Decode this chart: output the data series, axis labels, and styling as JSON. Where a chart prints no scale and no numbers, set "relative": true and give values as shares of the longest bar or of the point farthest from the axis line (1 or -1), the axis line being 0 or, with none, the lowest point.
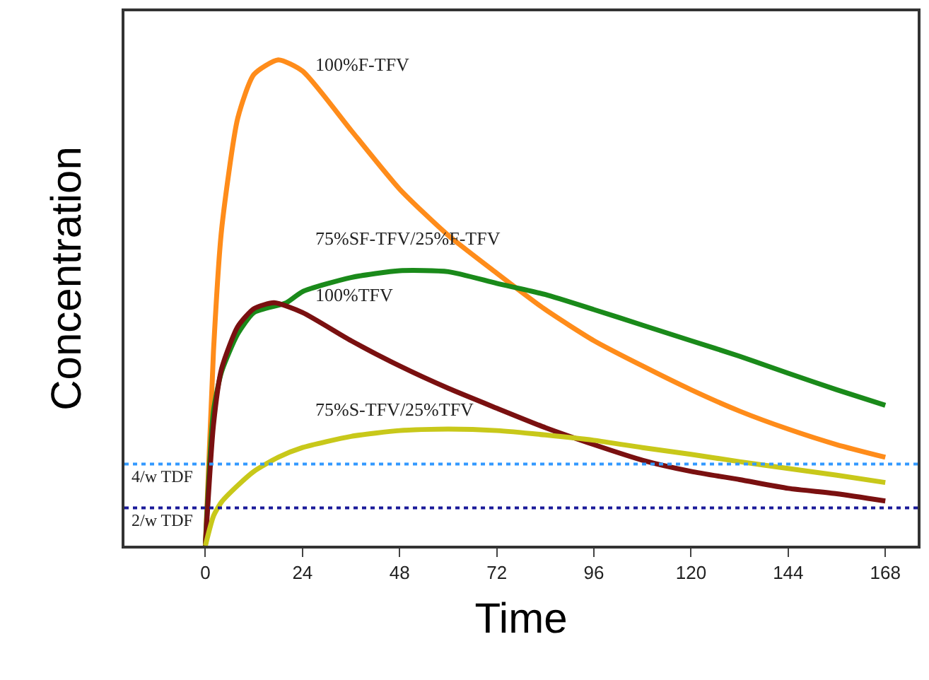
{
  "chart_data": {
    "type": "line",
    "relative": true,
    "xlabel": "Time",
    "ylabel": "Concentration",
    "xlim": [
      -20,
      176
    ],
    "xticks": [
      0,
      24,
      48,
      72,
      96,
      120,
      144,
      168
    ],
    "line_style": "solid",
    "marker": "none",
    "series": [
      {
        "color": "#ff8c1a",
        "x": [
          0,
          2,
          4,
          8,
          12,
          18,
          24,
          36,
          48,
          60,
          72,
          84,
          96,
          108,
          120,
          132,
          144,
          156,
          168
        ],
        "values": [
          0,
          0.4,
          0.65,
          0.88,
          0.97,
          1.0,
          0.977,
          0.855,
          0.734,
          0.639,
          0.561,
          0.486,
          0.422,
          0.37,
          0.321,
          0.277,
          0.24,
          0.208,
          0.182
        ]
      },
      {
        "color": "#1a8a1a",
        "x": [
          0,
          2,
          4,
          8,
          12,
          20,
          24,
          36,
          48,
          60,
          72,
          84,
          96,
          108,
          120,
          132,
          144,
          156,
          168
        ],
        "values": [
          0,
          0.277,
          0.358,
          0.436,
          0.48,
          0.5,
          0.523,
          0.552,
          0.566,
          0.564,
          0.54,
          0.517,
          0.486,
          0.454,
          0.422,
          0.39,
          0.355,
          0.321,
          0.289
        ]
      },
      {
        "color": "#7a1010",
        "x": [
          0,
          2,
          4,
          8,
          12,
          17,
          24,
          36,
          48,
          60,
          72,
          84,
          96,
          108,
          120,
          132,
          144,
          156,
          168
        ],
        "values": [
          0,
          0.249,
          0.364,
          0.451,
          0.488,
          0.5,
          0.48,
          0.422,
          0.37,
          0.324,
          0.283,
          0.243,
          0.208,
          0.176,
          0.153,
          0.136,
          0.118,
          0.107,
          0.092
        ]
      },
      {
        "color": "#c8c81a",
        "x": [
          0,
          2,
          4,
          8,
          12,
          18,
          24,
          36,
          48,
          60,
          72,
          84,
          96,
          108,
          120,
          132,
          144,
          156,
          168
        ],
        "values": [
          0,
          0.061,
          0.09,
          0.124,
          0.153,
          0.182,
          0.202,
          0.225,
          0.237,
          0.24,
          0.237,
          0.228,
          0.217,
          0.202,
          0.188,
          0.173,
          0.159,
          0.145,
          0.13
        ]
      }
    ],
    "ref_lines": [
      {
        "axis": "y",
        "value": 0.168,
        "label": "4/w TDF",
        "color": "#3399ff",
        "line_style": "dotted"
      },
      {
        "axis": "y",
        "value": 0.078,
        "label": "2/w TDF",
        "color": "#1a1a99",
        "line_style": "dotted"
      }
    ],
    "annotations": [
      "100%F-TFV",
      "75%SF-TFV/25%F-TFV",
      "100%TFV",
      "75%S-TFV/25%TFV"
    ]
  }
}
